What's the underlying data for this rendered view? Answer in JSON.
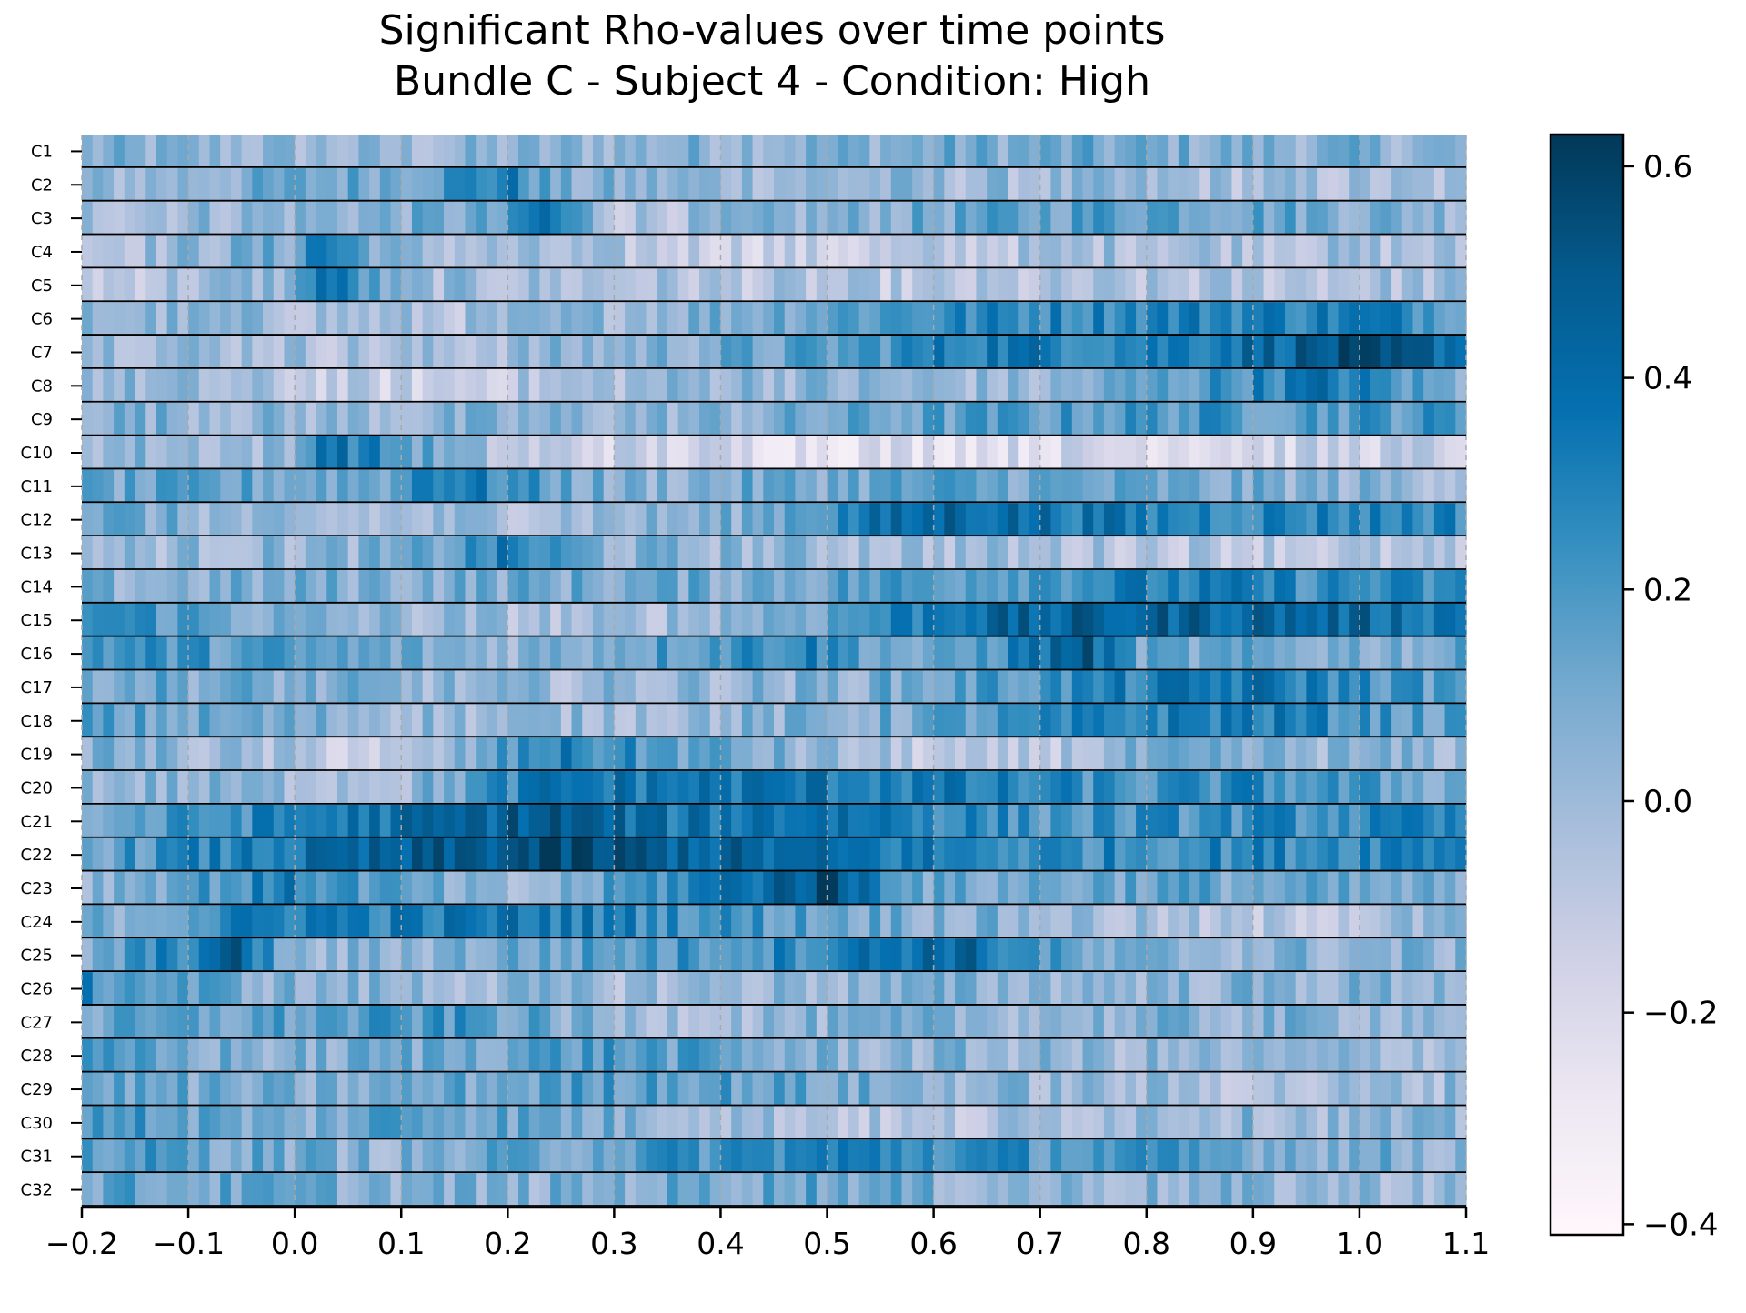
{
  "chart_data": {
    "type": "heatmap",
    "title": "Significant Rho-values over time points",
    "subtitle": "Bundle C - Subject 4 - Condition: High",
    "xlabel": "",
    "ylabel": "",
    "xlim": [
      -0.2,
      1.1
    ],
    "x_ticks": [
      "−0.2",
      "−0.1",
      "0.0",
      "0.1",
      "0.2",
      "0.3",
      "0.4",
      "0.5",
      "0.6",
      "0.7",
      "0.8",
      "0.9",
      "1.0",
      "1.1"
    ],
    "x_tick_values": [
      -0.2,
      -0.1,
      0.0,
      0.1,
      0.2,
      0.3,
      0.4,
      0.5,
      0.6,
      0.7,
      0.8,
      0.9,
      1.0,
      1.1
    ],
    "rows": [
      "C1",
      "C2",
      "C3",
      "C4",
      "C5",
      "C6",
      "C7",
      "C8",
      "C9",
      "C10",
      "C11",
      "C12",
      "C13",
      "C14",
      "C15",
      "C16",
      "C17",
      "C18",
      "C19",
      "C20",
      "C21",
      "C22",
      "C23",
      "C24",
      "C25",
      "C26",
      "C27",
      "C28",
      "C29",
      "C30",
      "C31",
      "C32"
    ],
    "colorbar": {
      "min": -0.41,
      "max": 0.63,
      "ticks": [
        "−0.4",
        "−0.2",
        "0.0",
        "0.2",
        "0.4",
        "0.6"
      ],
      "tick_values": [
        -0.4,
        -0.2,
        0.0,
        0.2,
        0.4,
        0.6
      ],
      "colormap": "PuBu",
      "colors": [
        "#fff7fb",
        "#ece7f2",
        "#d0d1e6",
        "#a6bddb",
        "#74a9cf",
        "#3690c0",
        "#0570b0",
        "#045a8d",
        "#023858"
      ]
    },
    "grid": "vertical dashed at x ticks",
    "time_step": 0.01,
    "row_profiles": [
      [
        [
          -0.2,
          0.05
        ],
        [
          0.1,
          0.0
        ],
        [
          0.3,
          0.05
        ],
        [
          0.7,
          0.1
        ],
        [
          1.1,
          0.05
        ]
      ],
      [
        [
          -0.2,
          0.0
        ],
        [
          0.1,
          0.15
        ],
        [
          0.2,
          0.32
        ],
        [
          0.25,
          0.05
        ],
        [
          1.1,
          -0.05
        ]
      ],
      [
        [
          -0.2,
          0.0
        ],
        [
          0.2,
          0.1
        ],
        [
          0.23,
          0.4
        ],
        [
          0.3,
          -0.05
        ],
        [
          0.8,
          0.2
        ],
        [
          1.1,
          0.05
        ]
      ],
      [
        [
          -0.2,
          -0.05
        ],
        [
          0.0,
          0.1
        ],
        [
          0.02,
          0.38
        ],
        [
          0.1,
          0.0
        ],
        [
          0.5,
          -0.15
        ],
        [
          0.8,
          0.0
        ],
        [
          1.1,
          -0.05
        ]
      ],
      [
        [
          -0.2,
          -0.1
        ],
        [
          0.0,
          0.05
        ],
        [
          0.02,
          0.42
        ],
        [
          0.1,
          0.0
        ],
        [
          0.6,
          -0.1
        ],
        [
          1.1,
          -0.02
        ]
      ],
      [
        [
          -0.2,
          0.05
        ],
        [
          0.15,
          -0.05
        ],
        [
          0.4,
          0.1
        ],
        [
          0.6,
          0.25
        ],
        [
          0.8,
          0.3
        ],
        [
          1.0,
          0.32
        ],
        [
          1.1,
          0.22
        ]
      ],
      [
        [
          -0.2,
          0.05
        ],
        [
          0.1,
          -0.05
        ],
        [
          0.5,
          0.15
        ],
        [
          0.65,
          0.35
        ],
        [
          0.8,
          0.3
        ],
        [
          0.98,
          0.5
        ],
        [
          1.1,
          0.42
        ]
      ],
      [
        [
          -0.2,
          0.05
        ],
        [
          0.1,
          -0.15
        ],
        [
          0.4,
          0.05
        ],
        [
          0.7,
          0.0
        ],
        [
          0.97,
          0.35
        ],
        [
          1.1,
          0.05
        ]
      ],
      [
        [
          -0.2,
          0.1
        ],
        [
          0.0,
          0.02
        ],
        [
          0.4,
          0.05
        ],
        [
          0.6,
          0.15
        ],
        [
          0.8,
          0.2
        ],
        [
          1.1,
          0.2
        ]
      ],
      [
        [
          -0.2,
          0.05
        ],
        [
          0.0,
          0.0
        ],
        [
          0.02,
          0.42
        ],
        [
          0.2,
          -0.1
        ],
        [
          0.5,
          -0.22
        ],
        [
          1.1,
          -0.12
        ]
      ],
      [
        [
          -0.2,
          0.1
        ],
        [
          0.1,
          0.15
        ],
        [
          0.12,
          0.38
        ],
        [
          0.3,
          0.05
        ],
        [
          0.6,
          0.15
        ],
        [
          1.1,
          0.02
        ]
      ],
      [
        [
          -0.2,
          0.15
        ],
        [
          0.0,
          -0.05
        ],
        [
          0.4,
          0.05
        ],
        [
          0.55,
          0.35
        ],
        [
          0.62,
          0.45
        ],
        [
          0.8,
          0.3
        ],
        [
          1.1,
          0.28
        ]
      ],
      [
        [
          -0.2,
          0.0
        ],
        [
          0.1,
          0.05
        ],
        [
          0.2,
          0.3
        ],
        [
          0.3,
          0.05
        ],
        [
          0.8,
          -0.05
        ],
        [
          1.1,
          -0.1
        ]
      ],
      [
        [
          -0.2,
          0.05
        ],
        [
          0.2,
          0.1
        ],
        [
          0.4,
          0.1
        ],
        [
          0.6,
          0.2
        ],
        [
          0.8,
          0.3
        ],
        [
          1.1,
          0.22
        ]
      ],
      [
        [
          -0.2,
          0.3
        ],
        [
          0.0,
          0.05
        ],
        [
          0.3,
          -0.05
        ],
        [
          0.5,
          0.15
        ],
        [
          0.62,
          0.4
        ],
        [
          0.82,
          0.45
        ],
        [
          1.0,
          0.42
        ],
        [
          1.1,
          0.35
        ]
      ],
      [
        [
          -0.2,
          0.25
        ],
        [
          0.2,
          0.05
        ],
        [
          0.48,
          0.3
        ],
        [
          0.6,
          0.05
        ],
        [
          0.74,
          0.5
        ],
        [
          0.8,
          0.1
        ],
        [
          1.1,
          0.1
        ]
      ],
      [
        [
          -0.2,
          0.15
        ],
        [
          0.2,
          0.0
        ],
        [
          0.5,
          0.05
        ],
        [
          0.8,
          0.3
        ],
        [
          0.9,
          0.35
        ],
        [
          1.1,
          0.15
        ]
      ],
      [
        [
          -0.2,
          0.15
        ],
        [
          0.2,
          0.0
        ],
        [
          0.5,
          0.05
        ],
        [
          0.8,
          0.3
        ],
        [
          0.9,
          0.33
        ],
        [
          1.1,
          0.12
        ]
      ],
      [
        [
          -0.2,
          0.1
        ],
        [
          0.1,
          -0.15
        ],
        [
          0.24,
          0.3
        ],
        [
          0.5,
          0.0
        ],
        [
          0.65,
          -0.15
        ],
        [
          0.8,
          0.05
        ],
        [
          1.1,
          0.02
        ]
      ],
      [
        [
          -0.2,
          0.05
        ],
        [
          0.1,
          0.0
        ],
        [
          0.24,
          0.35
        ],
        [
          0.52,
          0.35
        ],
        [
          0.8,
          0.2
        ],
        [
          0.9,
          0.25
        ],
        [
          1.1,
          0.1
        ]
      ],
      [
        [
          -0.2,
          0.1
        ],
        [
          0.0,
          0.3
        ],
        [
          0.24,
          0.5
        ],
        [
          0.35,
          0.35
        ],
        [
          0.5,
          0.4
        ],
        [
          0.7,
          0.2
        ],
        [
          0.95,
          0.25
        ],
        [
          1.1,
          0.25
        ]
      ],
      [
        [
          -0.2,
          0.15
        ],
        [
          0.0,
          0.35
        ],
        [
          0.24,
          0.55
        ],
        [
          0.45,
          0.4
        ],
        [
          0.7,
          0.25
        ],
        [
          0.95,
          0.28
        ],
        [
          1.1,
          0.35
        ]
      ],
      [
        [
          -0.2,
          0.05
        ],
        [
          0.0,
          0.3
        ],
        [
          0.2,
          -0.05
        ],
        [
          0.5,
          0.55
        ],
        [
          0.6,
          0.1
        ],
        [
          0.8,
          0.15
        ],
        [
          1.1,
          0.05
        ]
      ],
      [
        [
          -0.2,
          0.05
        ],
        [
          0.0,
          0.35
        ],
        [
          0.1,
          0.3
        ],
        [
          0.22,
          0.35
        ],
        [
          0.5,
          0.15
        ],
        [
          0.9,
          -0.1
        ],
        [
          1.1,
          0.02
        ]
      ],
      [
        [
          -0.2,
          0.05
        ],
        [
          -0.05,
          0.45
        ],
        [
          0.0,
          0.0
        ],
        [
          0.45,
          0.25
        ],
        [
          0.62,
          0.45
        ],
        [
          0.75,
          0.05
        ],
        [
          1.1,
          0.05
        ]
      ],
      [
        [
          -0.2,
          0.25
        ],
        [
          0.0,
          0.05
        ],
        [
          0.3,
          0.0
        ],
        [
          0.6,
          0.05
        ],
        [
          1.1,
          0.05
        ]
      ],
      [
        [
          -0.2,
          0.1
        ],
        [
          0.17,
          0.2
        ],
        [
          0.3,
          0.0
        ],
        [
          0.6,
          0.05
        ],
        [
          1.1,
          0.05
        ]
      ],
      [
        [
          -0.2,
          0.15
        ],
        [
          0.0,
          0.05
        ],
        [
          0.3,
          0.2
        ],
        [
          0.5,
          0.05
        ],
        [
          0.9,
          0.0
        ],
        [
          1.1,
          0.02
        ]
      ],
      [
        [
          -0.2,
          0.15
        ],
        [
          0.0,
          0.05
        ],
        [
          0.35,
          0.2
        ],
        [
          0.6,
          0.05
        ],
        [
          0.95,
          -0.05
        ],
        [
          1.1,
          0.02
        ]
      ],
      [
        [
          -0.2,
          0.25
        ],
        [
          0.0,
          0.05
        ],
        [
          0.1,
          0.2
        ],
        [
          0.6,
          -0.1
        ],
        [
          0.8,
          0.05
        ],
        [
          1.1,
          0.0
        ]
      ],
      [
        [
          -0.2,
          0.2
        ],
        [
          0.1,
          0.05
        ],
        [
          0.42,
          0.25
        ],
        [
          0.5,
          0.3
        ],
        [
          0.75,
          0.2
        ],
        [
          1.1,
          0.05
        ]
      ],
      [
        [
          -0.2,
          0.15
        ],
        [
          0.2,
          0.05
        ],
        [
          0.5,
          0.15
        ],
        [
          0.62,
          0.05
        ],
        [
          1.1,
          0.02
        ]
      ]
    ]
  }
}
